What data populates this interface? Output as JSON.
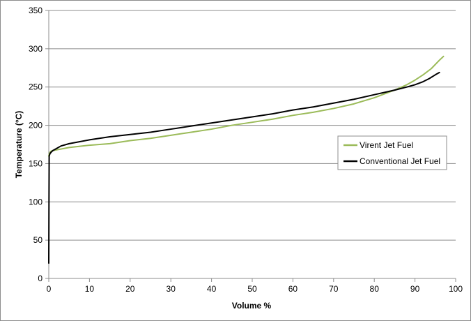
{
  "chart_data": {
    "type": "line",
    "xlabel": "Volume %",
    "ylabel": "Temperature (°C)",
    "xlim": [
      0,
      100
    ],
    "ylim": [
      0,
      350
    ],
    "xticks": [
      0,
      10,
      20,
      30,
      40,
      50,
      60,
      70,
      80,
      90,
      100
    ],
    "yticks": [
      0,
      50,
      100,
      150,
      200,
      250,
      300,
      350
    ],
    "grid": "horizontal",
    "legend_position": "right",
    "series": [
      {
        "name": "Virent Jet Fuel",
        "color": "#9bbb59",
        "x": [
          0,
          0.2,
          0.5,
          1,
          2,
          5,
          10,
          15,
          20,
          25,
          30,
          35,
          40,
          45,
          50,
          55,
          60,
          65,
          70,
          75,
          80,
          85,
          88,
          90,
          92,
          94,
          96,
          97
        ],
        "y": [
          160,
          164,
          166,
          167,
          168,
          171,
          174,
          176,
          180,
          183,
          187,
          191,
          195,
          200,
          204,
          208,
          213,
          217,
          222,
          228,
          236,
          246,
          253,
          259,
          266,
          274,
          285,
          290
        ]
      },
      {
        "name": "Conventional Jet Fuel",
        "color": "#000000",
        "x": [
          0,
          0.05,
          0.1,
          0.3,
          0.6,
          1,
          2,
          3,
          5,
          10,
          15,
          20,
          25,
          30,
          35,
          40,
          45,
          50,
          55,
          60,
          65,
          70,
          75,
          80,
          85,
          88,
          90,
          92,
          93.5,
          95,
          96
        ],
        "y": [
          20,
          100,
          160,
          163,
          165,
          167,
          170,
          173,
          176,
          181,
          185,
          188,
          191,
          195,
          199,
          203,
          207,
          211,
          215,
          220,
          224,
          229,
          234,
          240,
          246,
          250,
          253,
          257,
          261,
          266,
          269
        ]
      }
    ]
  }
}
